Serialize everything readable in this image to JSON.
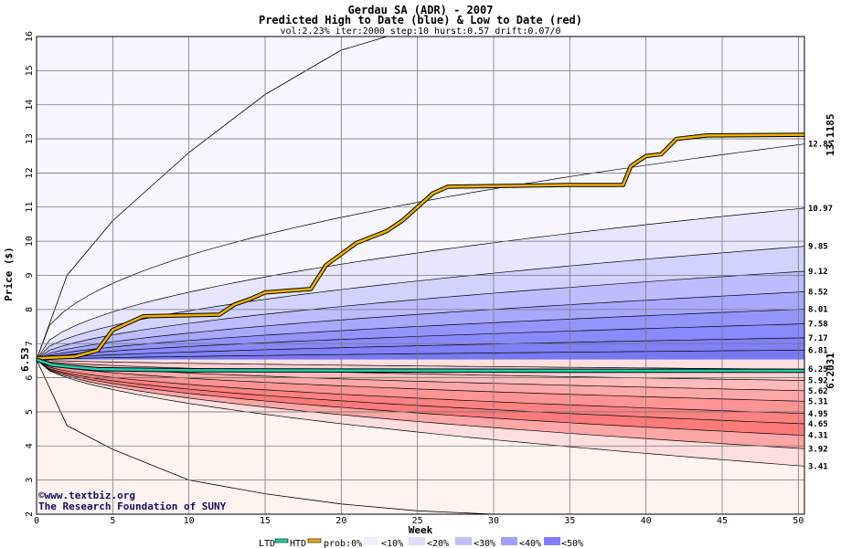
{
  "chart_data": {
    "type": "area",
    "title": "Gerdau SA (ADR) - 2007",
    "subtitle": "Predicted High to Date (blue) &  Low to Date (red)",
    "params": "vol:2.23% iter:2000 step:10 hurst:0.57 drift:0.07/0",
    "xlabel": "Week",
    "ylabel": "Price ($)",
    "xlim": [
      0,
      50.4
    ],
    "ylim": [
      2,
      16
    ],
    "x_ticks": [
      0,
      5,
      10,
      15,
      20,
      25,
      30,
      35,
      40,
      45,
      50
    ],
    "y_ticks": [
      2,
      3,
      4,
      5,
      6,
      7,
      8,
      9,
      10,
      11,
      12,
      13,
      14,
      15,
      16
    ],
    "grid": true,
    "start_price_label": "6.53",
    "start_price": 6.53,
    "htd_end_label": "13.1185",
    "htd_end": 13.1185,
    "ltd_end_label": "6.2031",
    "ltd_end": 6.2031,
    "upper_levels": [
      "12.85",
      "10.97",
      "9.85",
      "9.12",
      "8.52",
      "8.01",
      "7.58",
      "7.17",
      "6.81"
    ],
    "lower_levels": [
      "6.25",
      "5.92",
      "5.62",
      "5.31",
      "4.95",
      "4.65",
      "4.31",
      "3.92",
      "3.41"
    ],
    "upper_values": [
      12.85,
      10.97,
      9.85,
      9.12,
      8.52,
      8.01,
      7.58,
      7.17,
      6.81
    ],
    "lower_values": [
      6.25,
      5.92,
      5.62,
      5.31,
      4.95,
      4.65,
      4.31,
      3.92,
      3.41
    ],
    "upper_envelope": [
      [
        0,
        6.53
      ],
      [
        2,
        9.0
      ],
      [
        5,
        10.6
      ],
      [
        10,
        12.6
      ],
      [
        15,
        14.3
      ],
      [
        20,
        15.6
      ],
      [
        23,
        16.0
      ]
    ],
    "lower_envelope": [
      [
        0,
        6.53
      ],
      [
        2,
        4.6
      ],
      [
        5,
        3.9
      ],
      [
        10,
        3.0
      ],
      [
        15,
        2.6
      ],
      [
        20,
        2.3
      ],
      [
        25,
        2.1
      ],
      [
        30,
        2.0
      ]
    ],
    "series": [
      {
        "name": "HTD",
        "color": "#f0b000",
        "points": [
          [
            0,
            6.57
          ],
          [
            2.5,
            6.62
          ],
          [
            4,
            6.8
          ],
          [
            5,
            7.4
          ],
          [
            6,
            7.6
          ],
          [
            7,
            7.8
          ],
          [
            12,
            7.85
          ],
          [
            13,
            8.15
          ],
          [
            14,
            8.3
          ],
          [
            15,
            8.5
          ],
          [
            18,
            8.6
          ],
          [
            19,
            9.3
          ],
          [
            21,
            9.95
          ],
          [
            23,
            10.3
          ],
          [
            24,
            10.6
          ],
          [
            25,
            11.0
          ],
          [
            26,
            11.4
          ],
          [
            27,
            11.6
          ],
          [
            35,
            11.65
          ],
          [
            38.5,
            11.65
          ],
          [
            39,
            12.2
          ],
          [
            40,
            12.5
          ],
          [
            41,
            12.55
          ],
          [
            42,
            13.0
          ],
          [
            44,
            13.1
          ],
          [
            50.4,
            13.1185
          ]
        ]
      },
      {
        "name": "LTD",
        "color": "#20d0b0",
        "points": [
          [
            0,
            6.53
          ],
          [
            1,
            6.38
          ],
          [
            2,
            6.33
          ],
          [
            4,
            6.25
          ],
          [
            10,
            6.22
          ],
          [
            20,
            6.21
          ],
          [
            35,
            6.205
          ],
          [
            50.4,
            6.2031
          ]
        ]
      }
    ],
    "legend": {
      "ltd": "LTD",
      "htd": "HTD",
      "prob": "prob:0%",
      "bins": [
        "<10%",
        "<20%",
        "<30%",
        "<40%",
        "<50%"
      ],
      "colors": [
        "#ffffff",
        "#f0eeff",
        "#dcdcff",
        "#c0c0ff",
        "#a0a0ff",
        "#8080ff"
      ]
    },
    "band_colors_upper": [
      "#f7f6ff",
      "#e6e6ff",
      "#d2d2ff",
      "#bcbcff",
      "#a8a8ff",
      "#9494ff",
      "#8a8aff",
      "#8080f8",
      "#7878f0"
    ],
    "band_colors_lower": [
      "#ffe0e0",
      "#ffcece",
      "#ffbaba",
      "#ffa8a8",
      "#ff9494",
      "#ff8282",
      "#ff7a7a",
      "#ffa6a6",
      "#ffdede"
    ],
    "outer_upper_color": "#f6f6ff",
    "outer_lower_color": "#fff3f0"
  },
  "watermark": {
    "line1": "©www.textbiz.org",
    "line2": "The Research Foundation of SUNY"
  }
}
